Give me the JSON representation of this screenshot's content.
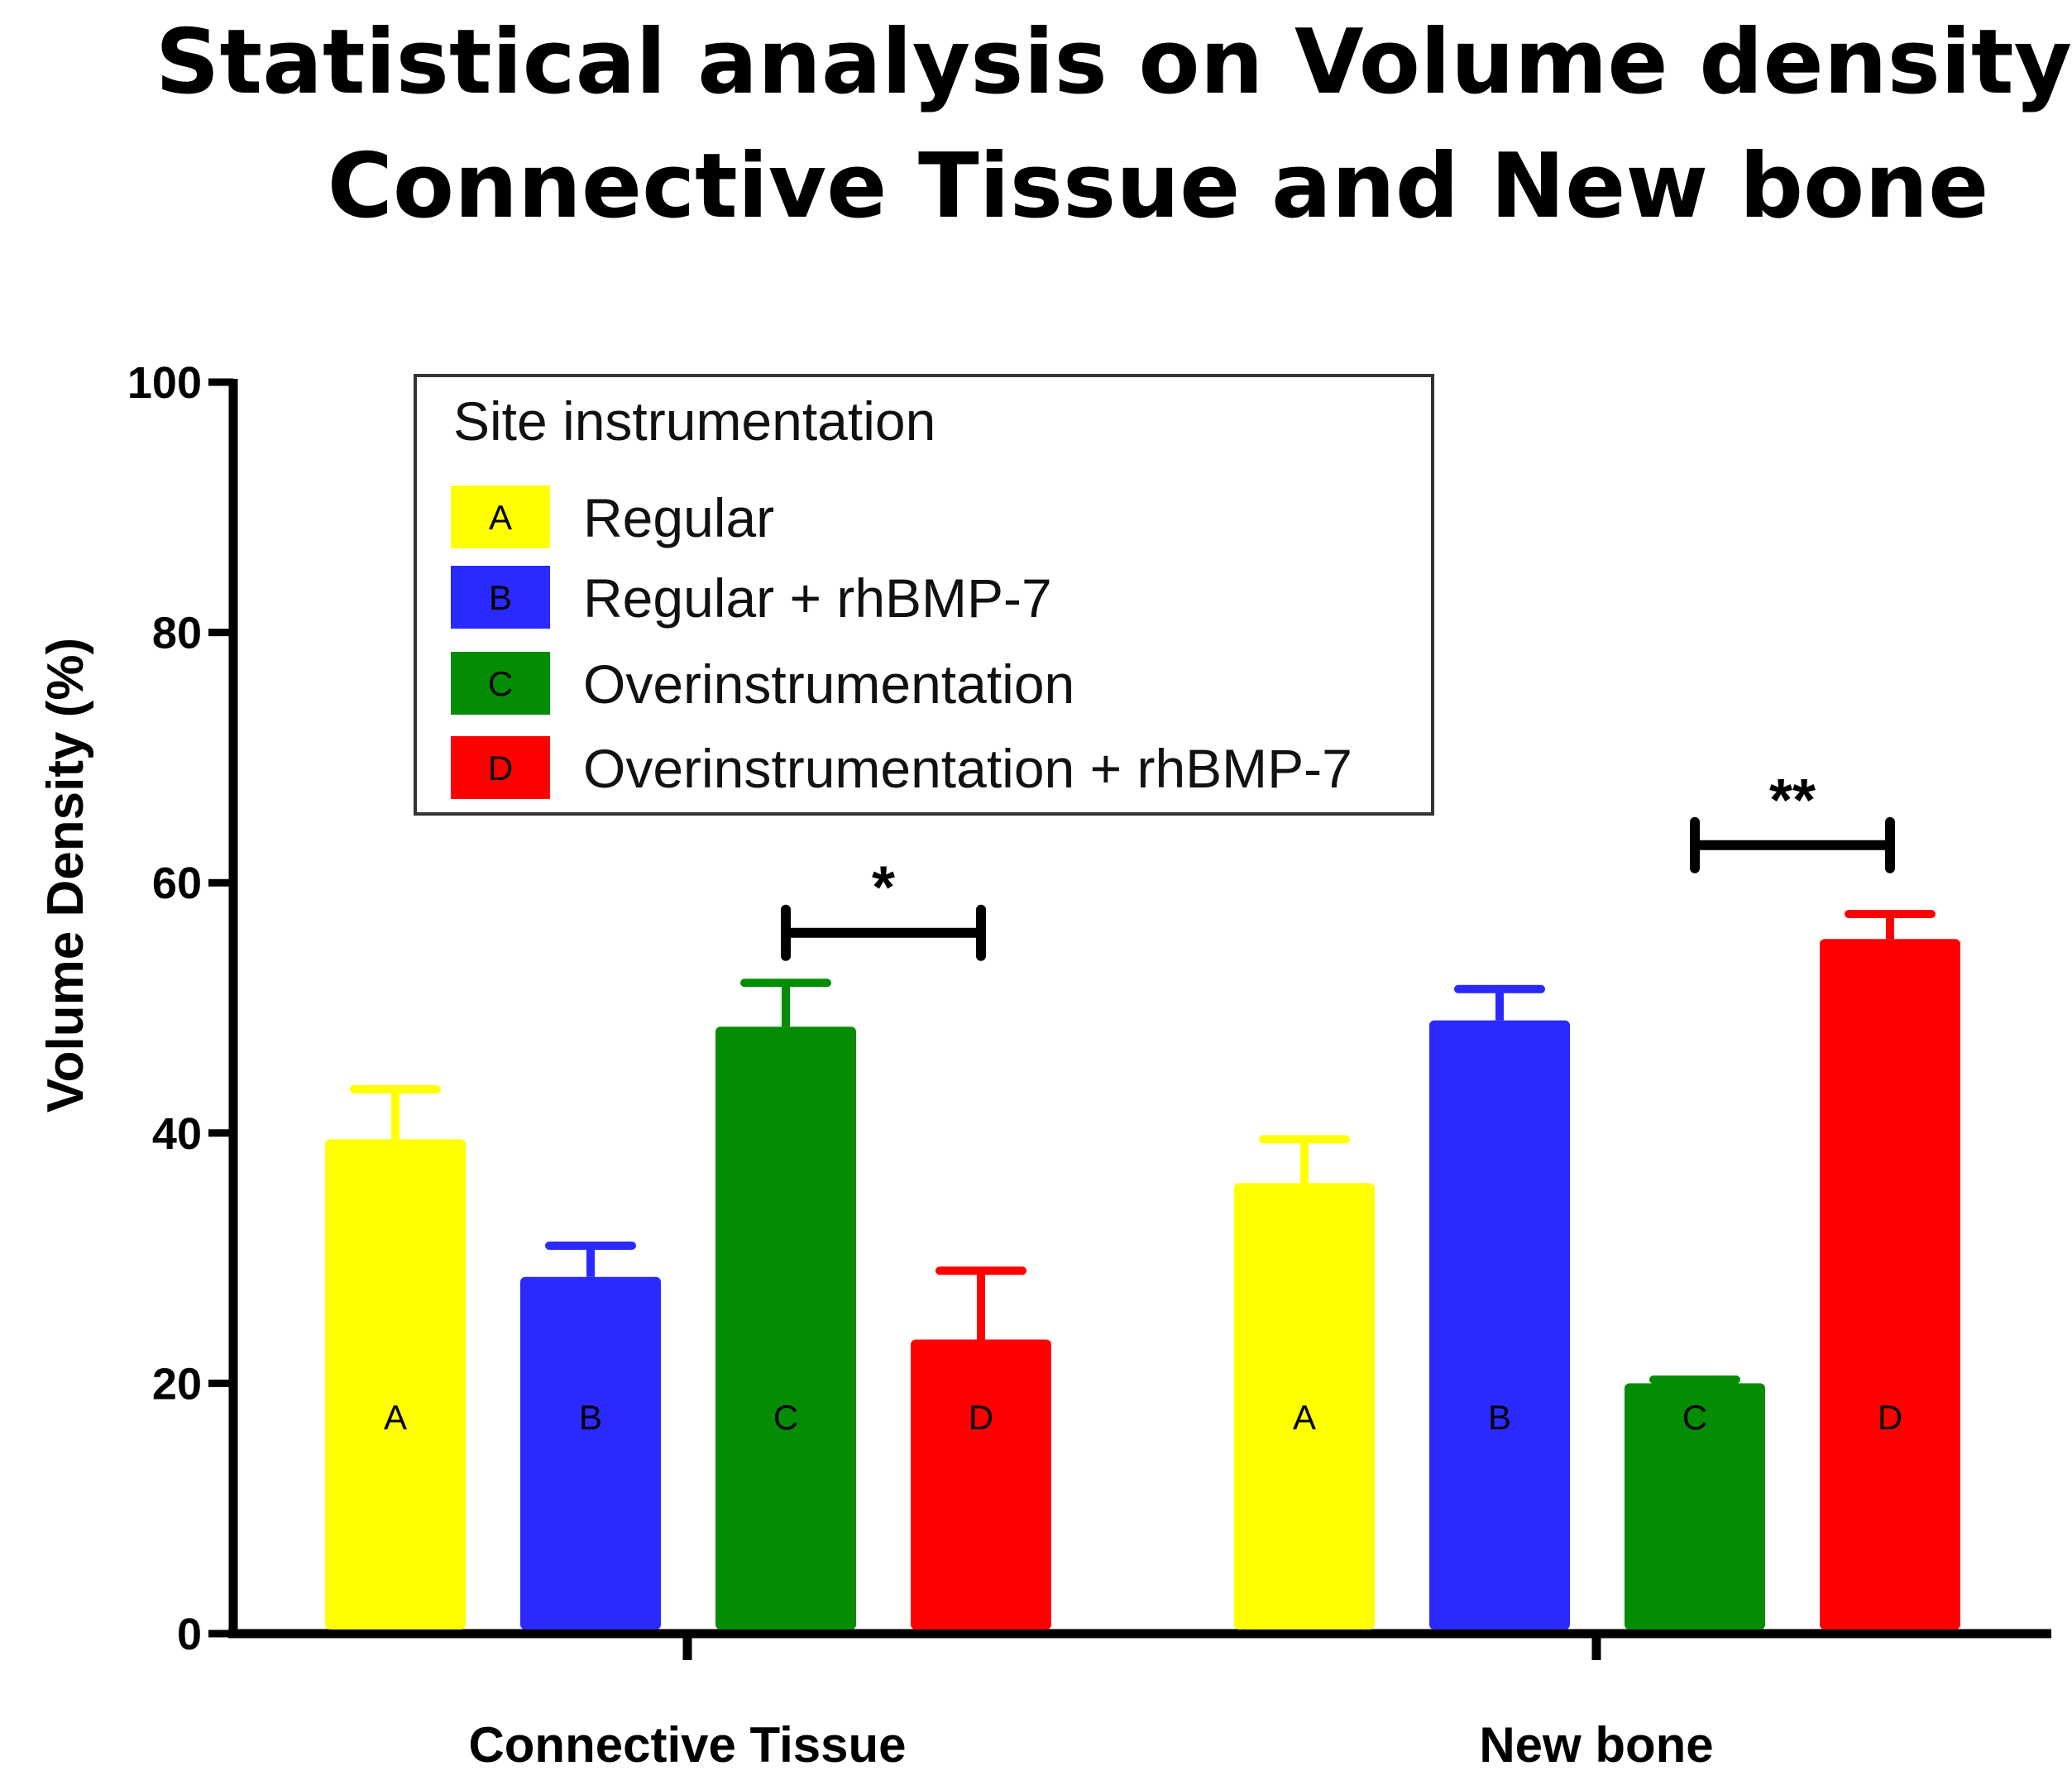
{
  "chart_data": {
    "type": "bar",
    "title_lines": [
      "Statistical analysis on Volume density x",
      "Connective Tissue and New bone"
    ],
    "xlabel": "",
    "ylabel": "Volume Density (%)",
    "ylim": [
      0,
      100
    ],
    "yticks": [
      "0",
      "20",
      "40",
      "60",
      "80",
      "100"
    ],
    "categories": [
      "Connective Tissue",
      "New bone"
    ],
    "legend": {
      "title": "Site instrumentation",
      "position": "top-left"
    },
    "series": [
      {
        "key": "A",
        "name": "Regular",
        "color": "#ffff00",
        "values": [
          39.5,
          36.0
        ],
        "errors": [
          4.0,
          3.5
        ]
      },
      {
        "key": "B",
        "name": "Regular + rhBMP-7",
        "color": "#2a2aff",
        "values": [
          28.5,
          49.0
        ],
        "errors": [
          2.5,
          2.5
        ]
      },
      {
        "key": "C",
        "name": "Overinstrumentation",
        "color": "#058c05",
        "values": [
          48.5,
          20.0
        ],
        "errors": [
          3.5,
          0.3
        ]
      },
      {
        "key": "D",
        "name": "Overinstrumentation + rhBMP-7",
        "color": "#ff0000",
        "values": [
          23.5,
          55.5
        ],
        "errors": [
          5.5,
          2.0
        ]
      }
    ],
    "significance": [
      {
        "category": 0,
        "from": "C",
        "to": "D",
        "label": "*",
        "y": 56
      },
      {
        "category": 1,
        "from": "C",
        "to": "D",
        "label": "**",
        "y": 63
      }
    ],
    "grid": false
  }
}
